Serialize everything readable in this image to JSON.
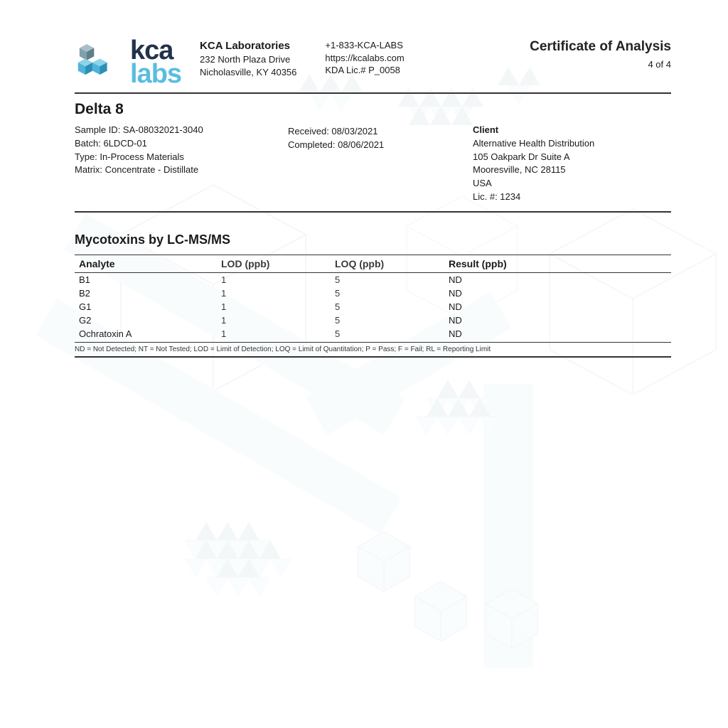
{
  "logo": {
    "kca": "kca",
    "labs": "labs"
  },
  "company": {
    "name": "KCA Laboratories",
    "addr1": "232 North Plaza Drive",
    "addr2": "Nicholasville, KY 40356"
  },
  "contact": {
    "phone": "+1-833-KCA-LABS",
    "web": "https://kcalabs.com",
    "license": "KDA Lic.# P_0058"
  },
  "doc": {
    "title": "Certificate of Analysis",
    "page": "4 of 4"
  },
  "sample": {
    "title": "Delta 8",
    "id_line": "Sample ID: SA-08032021-3040",
    "batch_line": "Batch: 6LDCD-01",
    "type_line": "Type: In-Process Materials",
    "matrix_line": "Matrix: Concentrate - Distillate",
    "received": "Received: 08/03/2021",
    "completed": "Completed: 08/06/2021"
  },
  "client": {
    "label": "Client",
    "name": "Alternative Health Distribution",
    "addr1": "105 Oakpark Dr Suite A",
    "addr2": "Mooresville, NC 28115",
    "country": "USA",
    "lic": "Lic. #: 1234"
  },
  "table": {
    "title": "Mycotoxins by LC-MS/MS",
    "headers": {
      "analyte": "Analyte",
      "lod": "LOD (ppb)",
      "loq": "LOQ (ppb)",
      "result": "Result (ppb)"
    },
    "rows": [
      {
        "analyte": "B1",
        "lod": "1",
        "loq": "5",
        "result": "ND"
      },
      {
        "analyte": "B2",
        "lod": "1",
        "loq": "5",
        "result": "ND"
      },
      {
        "analyte": "G1",
        "lod": "1",
        "loq": "5",
        "result": "ND"
      },
      {
        "analyte": "G2",
        "lod": "1",
        "loq": "5",
        "result": "ND"
      },
      {
        "analyte": "Ochratoxin A",
        "lod": "1",
        "loq": "5",
        "result": "ND"
      }
    ],
    "footnote": "ND = Not Detected; NT = Not Tested; LOD = Limit of Detection; LOQ = Limit of Quantitation; P = Pass; F = Fail; RL = Reporting Limit"
  },
  "colors": {
    "text": "#1a1a1a",
    "accent_blue": "#59bde0",
    "dark_blue": "#22324a",
    "bg_light": "#d6eef5",
    "bg_stroke": "#9bb8c2"
  }
}
